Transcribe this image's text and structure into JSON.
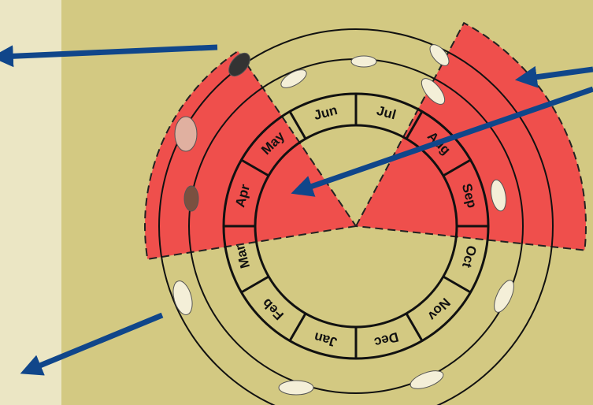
{
  "months": [
    "Jan",
    "Feb",
    "Mar",
    "Apr",
    "May",
    "Jun",
    "Jul",
    "Aug",
    "Sep",
    "Oct",
    "Nov",
    "Dec"
  ]
}
